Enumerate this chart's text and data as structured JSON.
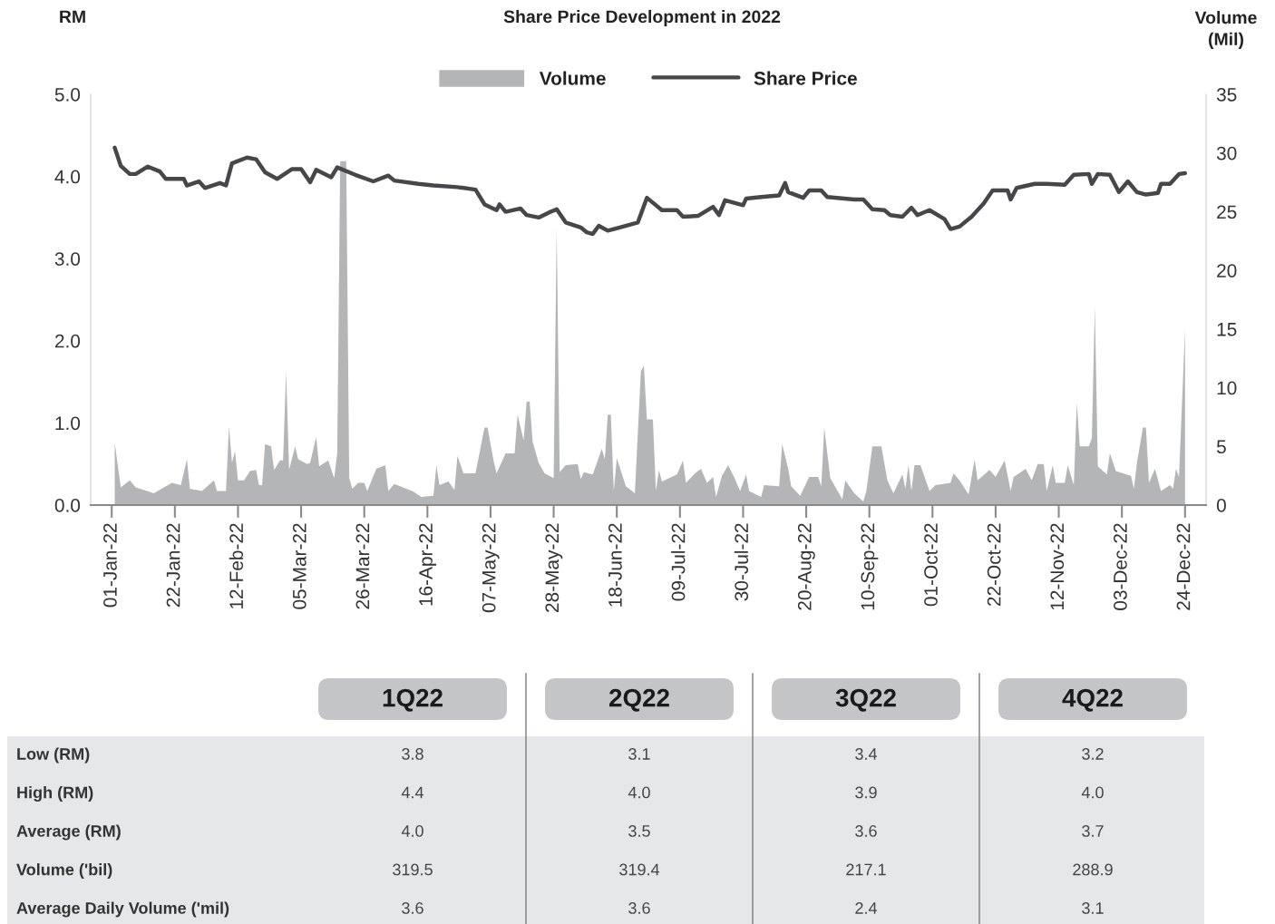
{
  "chart_data": [
    {
      "type": "line",
      "title": "Share Price Development in 2022",
      "ylabel": "RM",
      "y2label": "Volume\n(Mil)",
      "legend": "top",
      "xlim": [
        "2021-12-25",
        "2022-12-31"
      ],
      "xticks": [
        {
          "value": "2022-01-01",
          "label": "01-Jan-22"
        },
        {
          "value": "2022-01-22",
          "label": "22-Jan-22"
        },
        {
          "value": "2022-02-12",
          "label": "12-Feb-22"
        },
        {
          "value": "2022-03-05",
          "label": "05-Mar-22"
        },
        {
          "value": "2022-03-26",
          "label": "26-Mar-22"
        },
        {
          "value": "2022-04-16",
          "label": "16-Apr-22"
        },
        {
          "value": "2022-05-07",
          "label": "07-May-22"
        },
        {
          "value": "2022-05-28",
          "label": "28-May-22"
        },
        {
          "value": "2022-06-18",
          "label": "18-Jun-22"
        },
        {
          "value": "2022-07-09",
          "label": "09-Jul-22"
        },
        {
          "value": "2022-07-30",
          "label": "30-Jul-22"
        },
        {
          "value": "2022-08-20",
          "label": "20-Aug-22"
        },
        {
          "value": "2022-09-10",
          "label": "10-Sep-22"
        },
        {
          "value": "2022-10-01",
          "label": "01-Oct-22"
        },
        {
          "value": "2022-10-22",
          "label": "22-Oct-22"
        },
        {
          "value": "2022-11-12",
          "label": "12-Nov-22"
        },
        {
          "value": "2022-12-03",
          "label": "03-Dec-22"
        },
        {
          "value": "2022-12-24",
          "label": "24-Dec-22"
        }
      ],
      "ylim": [
        0,
        5
      ],
      "yticks": [
        {
          "value": 0,
          "label": "0.0"
        },
        {
          "value": 1,
          "label": "1.0"
        },
        {
          "value": 2,
          "label": "2.0"
        },
        {
          "value": 3,
          "label": "3.0"
        },
        {
          "value": 4,
          "label": "4.0"
        },
        {
          "value": 5,
          "label": "5.0"
        }
      ],
      "y2lim": [
        0,
        35
      ],
      "y2ticks": [
        0,
        5,
        10,
        15,
        20,
        25,
        30,
        35
      ],
      "series": [
        {
          "name": "Volume",
          "type": "area",
          "axis": "y2",
          "color": "#b4b5b7",
          "x": [
            "2022-01-02",
            "2022-01-04",
            "2022-01-07",
            "2022-01-09",
            "2022-01-15",
            "2022-01-21",
            "2022-01-24",
            "2022-01-26",
            "2022-01-27",
            "2022-01-31",
            "2022-02-04",
            "2022-02-05",
            "2022-02-08",
            "2022-02-09",
            "2022-02-10",
            "2022-02-11",
            "2022-02-12",
            "2022-02-14",
            "2022-02-16",
            "2022-02-18",
            "2022-02-19",
            "2022-02-20",
            "2022-02-21",
            "2022-02-23",
            "2022-02-24",
            "2022-02-26",
            "2022-02-27",
            "2022-02-28",
            "2022-03-01",
            "2022-03-03",
            "2022-03-04",
            "2022-03-07",
            "2022-03-08",
            "2022-03-10",
            "2022-03-11",
            "2022-03-14",
            "2022-03-16",
            "2022-03-17",
            "2022-03-18",
            "2022-03-20",
            "2022-03-21",
            "2022-03-22",
            "2022-03-24",
            "2022-03-26",
            "2022-03-27",
            "2022-03-30",
            "2022-04-02",
            "2022-04-03",
            "2022-04-05",
            "2022-04-09",
            "2022-04-11",
            "2022-04-14",
            "2022-04-18",
            "2022-04-19",
            "2022-04-20",
            "2022-04-23",
            "2022-04-25",
            "2022-04-26",
            "2022-04-28",
            "2022-05-02",
            "2022-05-05",
            "2022-05-06",
            "2022-05-08",
            "2022-05-09",
            "2022-05-12",
            "2022-05-15",
            "2022-05-16",
            "2022-05-18",
            "2022-05-19",
            "2022-05-20",
            "2022-05-21",
            "2022-05-23",
            "2022-05-25",
            "2022-05-28",
            "2022-05-29",
            "2022-05-30",
            "2022-06-01",
            "2022-06-05",
            "2022-06-06",
            "2022-06-07",
            "2022-06-10",
            "2022-06-13",
            "2022-06-14",
            "2022-06-15",
            "2022-06-16",
            "2022-06-17",
            "2022-06-18",
            "2022-06-21",
            "2022-06-24",
            "2022-06-26",
            "2022-06-27",
            "2022-06-28",
            "2022-06-30",
            "2022-07-01",
            "2022-07-02",
            "2022-07-03",
            "2022-07-08",
            "2022-07-10",
            "2022-07-11",
            "2022-07-14",
            "2022-07-16",
            "2022-07-18",
            "2022-07-20",
            "2022-07-21",
            "2022-07-23",
            "2022-07-25",
            "2022-07-27",
            "2022-07-29",
            "2022-07-31",
            "2022-08-01",
            "2022-08-05",
            "2022-08-06",
            "2022-08-11",
            "2022-08-12",
            "2022-08-14",
            "2022-08-15",
            "2022-08-18",
            "2022-08-21",
            "2022-08-24",
            "2022-08-25",
            "2022-08-26",
            "2022-08-28",
            "2022-09-01",
            "2022-09-02",
            "2022-09-05",
            "2022-09-08",
            "2022-09-09",
            "2022-09-11",
            "2022-09-14",
            "2022-09-16",
            "2022-09-18",
            "2022-09-21",
            "2022-09-22",
            "2022-09-23",
            "2022-09-24",
            "2022-09-25",
            "2022-09-27",
            "2022-09-30",
            "2022-10-02",
            "2022-10-07",
            "2022-10-08",
            "2022-10-10",
            "2022-10-13",
            "2022-10-15",
            "2022-10-16",
            "2022-10-20",
            "2022-10-22",
            "2022-10-25",
            "2022-10-27",
            "2022-10-28",
            "2022-11-01",
            "2022-11-03",
            "2022-11-05",
            "2022-11-07",
            "2022-11-08",
            "2022-11-10",
            "2022-11-11",
            "2022-11-14",
            "2022-11-15",
            "2022-11-17",
            "2022-11-18",
            "2022-11-19",
            "2022-11-22",
            "2022-11-23",
            "2022-11-24",
            "2022-11-25",
            "2022-11-28",
            "2022-11-29",
            "2022-12-01",
            "2022-12-06",
            "2022-12-07",
            "2022-12-08",
            "2022-12-10",
            "2022-12-11",
            "2022-12-12",
            "2022-12-14",
            "2022-12-16",
            "2022-12-19",
            "2022-12-20",
            "2022-12-21",
            "2022-12-22",
            "2022-12-24"
          ],
          "values": [
            5.3,
            1.5,
            2.1,
            1.5,
            1.0,
            1.9,
            1.7,
            3.9,
            1.4,
            1.2,
            2.1,
            1.2,
            1.2,
            6.7,
            3.6,
            4.6,
            2.1,
            2.1,
            2.9,
            3.0,
            1.7,
            1.7,
            5.2,
            5.0,
            3.0,
            3.8,
            3.8,
            11.4,
            3.0,
            5.0,
            3.9,
            3.5,
            3.6,
            5.8,
            3.3,
            3.8,
            2.3,
            4.4,
            29.3,
            29.3,
            2.3,
            1.4,
            1.9,
            1.9,
            1.2,
            3.1,
            3.4,
            1.2,
            1.8,
            1.4,
            1.2,
            0.7,
            0.8,
            3.4,
            1.7,
            2.0,
            1.3,
            4.2,
            2.7,
            2.7,
            6.6,
            6.6,
            3.8,
            2.7,
            4.4,
            4.4,
            7.7,
            5.5,
            8.8,
            8.8,
            5.4,
            3.6,
            2.7,
            2.3,
            23.6,
            2.8,
            3.4,
            3.5,
            2.2,
            2.8,
            2.6,
            4.8,
            3.9,
            7.7,
            7.7,
            1.2,
            4.0,
            1.6,
            1.0,
            11.4,
            11.9,
            7.3,
            7.3,
            1.2,
            3.0,
            2.0,
            2.6,
            3.8,
            1.9,
            2.7,
            3.1,
            1.9,
            2.4,
            0.7,
            2.5,
            3.4,
            2.4,
            1.2,
            2.6,
            1.2,
            0.7,
            1.7,
            1.6,
            5.2,
            3.1,
            1.6,
            0.8,
            2.4,
            2.4,
            1.6,
            6.6,
            2.3,
            0.5,
            2.1,
            1.0,
            0.3,
            1.2,
            5.0,
            5.0,
            2.1,
            1.0,
            2.6,
            1.4,
            3.4,
            1.2,
            3.4,
            3.4,
            1.2,
            1.7,
            1.9,
            2.7,
            2.1,
            0.9,
            3.9,
            2.1,
            3.0,
            2.4,
            3.8,
            1.2,
            2.4,
            3.1,
            2.1,
            3.5,
            3.5,
            1.2,
            3.4,
            1.9,
            1.9,
            3.4,
            1.7,
            8.7,
            5.0,
            5.0,
            5.7,
            16.9,
            3.3,
            2.6,
            4.4,
            2.9,
            2.5,
            1.4,
            3.6,
            6.6,
            6.6,
            1.9,
            3.1,
            1.2,
            1.7,
            1.4,
            3.1,
            2.4,
            15.0
          ]
        },
        {
          "name": "Share Price",
          "type": "line",
          "color": "#474749",
          "x": [
            "2022-01-02",
            "2022-01-04",
            "2022-01-07",
            "2022-01-09",
            "2022-01-13",
            "2022-01-17",
            "2022-01-19",
            "2022-01-25",
            "2022-01-26",
            "2022-01-30",
            "2022-02-01",
            "2022-02-06",
            "2022-02-08",
            "2022-02-10",
            "2022-02-15",
            "2022-02-18",
            "2022-02-21",
            "2022-02-25",
            "2022-03-02",
            "2022-03-05",
            "2022-03-08",
            "2022-03-10",
            "2022-03-15",
            "2022-03-17",
            "2022-03-23",
            "2022-03-29",
            "2022-04-03",
            "2022-04-05",
            "2022-04-13",
            "2022-04-18",
            "2022-04-26",
            "2022-05-02",
            "2022-05-05",
            "2022-05-09",
            "2022-05-10",
            "2022-05-12",
            "2022-05-17",
            "2022-05-19",
            "2022-05-23",
            "2022-05-27",
            "2022-05-29",
            "2022-06-01",
            "2022-06-06",
            "2022-06-08",
            "2022-06-10",
            "2022-06-12",
            "2022-06-15",
            "2022-06-19",
            "2022-06-25",
            "2022-06-28",
            "2022-07-03",
            "2022-07-08",
            "2022-07-10",
            "2022-07-15",
            "2022-07-20",
            "2022-07-22",
            "2022-07-24",
            "2022-07-30",
            "2022-07-31",
            "2022-08-05",
            "2022-08-11",
            "2022-08-13",
            "2022-08-14",
            "2022-08-19",
            "2022-08-21",
            "2022-08-25",
            "2022-08-27",
            "2022-09-05",
            "2022-09-08",
            "2022-09-11",
            "2022-09-15",
            "2022-09-17",
            "2022-09-21",
            "2022-09-24",
            "2022-09-26",
            "2022-09-30",
            "2022-10-05",
            "2022-10-07",
            "2022-10-10",
            "2022-10-14",
            "2022-10-18",
            "2022-10-21",
            "2022-10-26",
            "2022-10-27",
            "2022-10-29",
            "2022-11-04",
            "2022-11-08",
            "2022-11-14",
            "2022-11-17",
            "2022-11-22",
            "2022-11-23",
            "2022-11-25",
            "2022-11-29",
            "2022-12-02",
            "2022-12-05",
            "2022-12-08",
            "2022-12-11",
            "2022-12-15",
            "2022-12-16",
            "2022-12-19",
            "2022-12-22",
            "2022-12-24"
          ],
          "values": [
            4.35,
            4.13,
            4.03,
            4.03,
            4.12,
            4.06,
            3.97,
            3.97,
            3.89,
            3.94,
            3.86,
            3.92,
            3.89,
            4.16,
            4.23,
            4.21,
            4.05,
            3.97,
            4.09,
            4.09,
            3.93,
            4.08,
            3.99,
            4.11,
            4.02,
            3.94,
            4.01,
            3.95,
            3.91,
            3.89,
            3.87,
            3.84,
            3.66,
            3.59,
            3.66,
            3.57,
            3.61,
            3.53,
            3.5,
            3.57,
            3.6,
            3.44,
            3.38,
            3.32,
            3.3,
            3.4,
            3.34,
            3.38,
            3.44,
            3.74,
            3.59,
            3.59,
            3.51,
            3.52,
            3.63,
            3.53,
            3.71,
            3.65,
            3.73,
            3.75,
            3.77,
            3.92,
            3.81,
            3.74,
            3.83,
            3.83,
            3.75,
            3.72,
            3.72,
            3.6,
            3.59,
            3.53,
            3.51,
            3.62,
            3.53,
            3.59,
            3.48,
            3.36,
            3.39,
            3.51,
            3.67,
            3.83,
            3.83,
            3.72,
            3.86,
            3.91,
            3.91,
            3.9,
            4.02,
            4.03,
            3.91,
            4.03,
            4.02,
            3.81,
            3.94,
            3.81,
            3.78,
            3.8,
            3.91,
            3.91,
            4.03,
            4.04
          ]
        }
      ]
    },
    {
      "type": "other",
      "categories": [
        "1Q22",
        "2Q22",
        "3Q22",
        "4Q22"
      ],
      "y_categories": [
        "Low (RM)",
        "High (RM)",
        "Average (RM)",
        "Volume ('bil)",
        "Average Daily Volume ('mil)"
      ],
      "cell_labels": [
        [
          "3.8",
          "3.1",
          "3.4",
          "3.2"
        ],
        [
          "4.4",
          "4.0",
          "3.9",
          "4.0"
        ],
        [
          "4.0",
          "3.5",
          "3.6",
          "3.7"
        ],
        [
          "319.5",
          "319.4",
          "217.1",
          "288.9"
        ],
        [
          "3.6",
          "3.6",
          "2.4",
          "3.1"
        ]
      ]
    }
  ]
}
